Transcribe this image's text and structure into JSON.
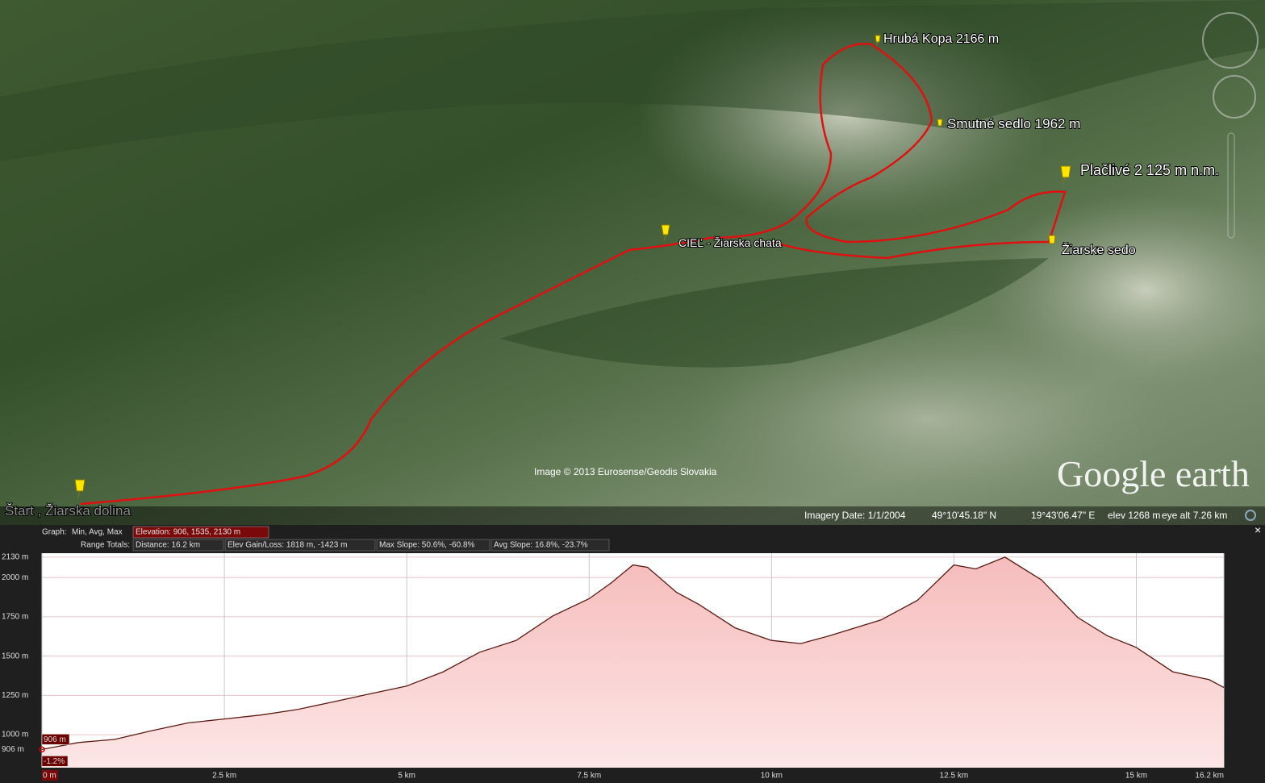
{
  "map": {
    "placemarks": [
      "Hrubá Kopa 2166 m",
      "Smutné sedlo 1962 m",
      "Plačlivé  2 125 m n.m.",
      "Žiarske sedo",
      "CIEĽ -  Žiarska chata",
      "Štart , Žiarska dolina"
    ],
    "attribution": "Image © 2013 Eurosense/Geodis Slovakia",
    "logo": "Google earth",
    "status": {
      "imagery_date": "Imagery Date: 1/1/2004",
      "lat": "49°10'45.18\" N",
      "lon": "19°43'06.47\" E",
      "elev": "elev  1268 m",
      "eye_alt": "eye alt   7.26 km"
    }
  },
  "profile_header": {
    "graph_label": "Graph:",
    "graph_options": "Min, Avg, Max",
    "elevation": "Elevation: 906, 1535, 2130 m",
    "range_label": "Range Totals:",
    "distance": "Distance: 16.2 km",
    "gain_loss": "Elev Gain/Loss: 1818 m, -1423 m",
    "max_slope": "Max Slope: 50.6%, -60.8%",
    "avg_slope": "Avg Slope: 16.8%, -23.7%"
  },
  "chart_data": {
    "type": "area",
    "x": [
      0,
      0.5,
      1.0,
      1.5,
      2.0,
      2.5,
      3.0,
      3.5,
      4.0,
      4.5,
      5.0,
      5.5,
      6.0,
      6.5,
      7.0,
      7.5,
      7.8,
      8.1,
      8.3,
      8.7,
      9.0,
      9.5,
      10.0,
      10.4,
      10.8,
      11.5,
      12.0,
      12.5,
      12.8,
      13.2,
      13.7,
      14.2,
      14.6,
      15.0,
      15.5,
      16.0,
      16.2
    ],
    "values": [
      906,
      950,
      970,
      1025,
      1075,
      1100,
      1125,
      1160,
      1210,
      1260,
      1310,
      1400,
      1525,
      1600,
      1755,
      1865,
      1965,
      2080,
      2065,
      1905,
      1830,
      1680,
      1600,
      1580,
      1630,
      1730,
      1855,
      2080,
      2055,
      2130,
      1985,
      1745,
      1630,
      1555,
      1400,
      1350,
      1300
    ],
    "xlim": [
      0,
      16.2
    ],
    "ylim": [
      790,
      2155
    ],
    "xticks": [
      {
        "value": 0,
        "label": "0 m"
      },
      {
        "value": 2.5,
        "label": "2.5 km"
      },
      {
        "value": 5,
        "label": "5 km"
      },
      {
        "value": 7.5,
        "label": "7.5 km"
      },
      {
        "value": 10,
        "label": "10 km"
      },
      {
        "value": 12.5,
        "label": "12.5 km"
      },
      {
        "value": 15,
        "label": "15 km"
      },
      {
        "value": 16.2,
        "label": "16.2 km"
      }
    ],
    "yticks": [
      {
        "value": 906,
        "label": "906 m"
      },
      {
        "value": 1000,
        "label": "1000 m"
      },
      {
        "value": 1250,
        "label": "1250 m"
      },
      {
        "value": 1500,
        "label": "1500 m"
      },
      {
        "value": 1750,
        "label": "1750 m"
      },
      {
        "value": 2000,
        "label": "2000 m"
      },
      {
        "value": 2130,
        "label": "2130 m"
      }
    ],
    "cursor": {
      "elevation": "906 m",
      "slope": "-1.2%"
    },
    "color": "#5a1a12",
    "fill": "#f7c9c9",
    "grid": true
  }
}
